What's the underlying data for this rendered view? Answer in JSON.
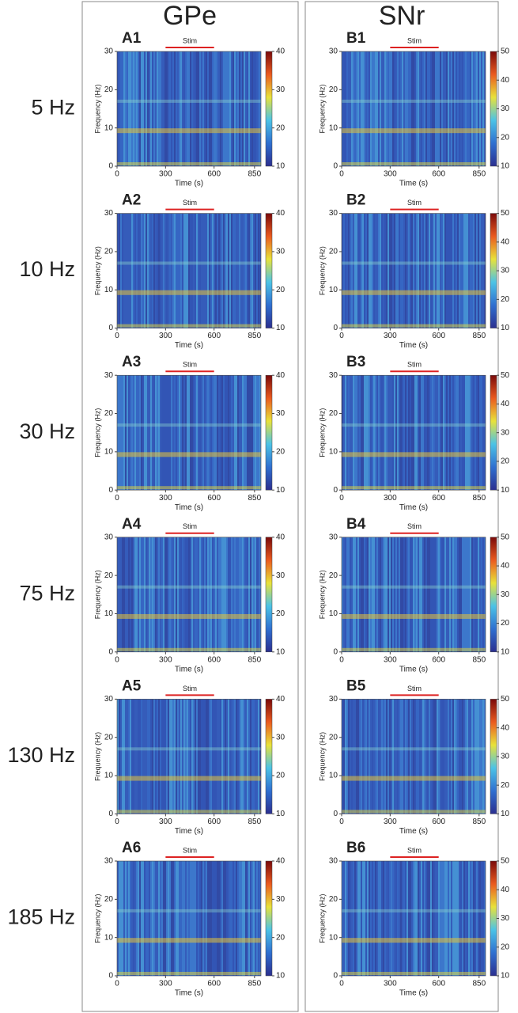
{
  "figure": {
    "columns": [
      "GPe",
      "SNr"
    ],
    "rows": [
      "5 Hz",
      "10 Hz",
      "30 Hz",
      "75 Hz",
      "130 Hz",
      "185 Hz"
    ]
  },
  "chart_data": [
    {
      "type": "heatmap",
      "label": "A1",
      "stim_label": "Stim",
      "stim": [
        300,
        600
      ],
      "xlabel": "Time (s)",
      "ylabel": "Frequency (Hz)",
      "xlim": [
        0,
        890
      ],
      "xticks": [
        0,
        300,
        600,
        850
      ],
      "ylim": [
        0,
        30
      ],
      "yticks": [
        0,
        10,
        20,
        30
      ],
      "clim": [
        10,
        40
      ],
      "cticks": [
        10,
        20,
        30,
        40
      ]
    },
    {
      "type": "heatmap",
      "label": "A2",
      "stim_label": "Stim",
      "stim": [
        300,
        600
      ],
      "xlabel": "Time (s)",
      "ylabel": "Frequency (Hz)",
      "xlim": [
        0,
        890
      ],
      "xticks": [
        0,
        300,
        600,
        850
      ],
      "ylim": [
        0,
        30
      ],
      "yticks": [
        0,
        10,
        20,
        30
      ],
      "clim": [
        10,
        40
      ],
      "cticks": [
        10,
        20,
        30,
        40
      ]
    },
    {
      "type": "heatmap",
      "label": "A3",
      "stim_label": "Stim",
      "stim": [
        300,
        600
      ],
      "xlabel": "Time (s)",
      "ylabel": "Frequency (Hz)",
      "xlim": [
        0,
        890
      ],
      "xticks": [
        0,
        300,
        600,
        850
      ],
      "ylim": [
        0,
        30
      ],
      "yticks": [
        0,
        10,
        20,
        30
      ],
      "clim": [
        10,
        40
      ],
      "cticks": [
        10,
        20,
        30,
        40
      ]
    },
    {
      "type": "heatmap",
      "label": "A4",
      "stim_label": "Stim",
      "stim": [
        300,
        600
      ],
      "xlabel": "Time (s)",
      "ylabel": "Frequency (Hz)",
      "xlim": [
        0,
        890
      ],
      "xticks": [
        0,
        300,
        600,
        850
      ],
      "ylim": [
        0,
        30
      ],
      "yticks": [
        0,
        10,
        20,
        30
      ],
      "clim": [
        10,
        40
      ],
      "cticks": [
        10,
        20,
        30,
        40
      ]
    },
    {
      "type": "heatmap",
      "label": "A5",
      "stim_label": "Stim",
      "stim": [
        300,
        600
      ],
      "xlabel": "Time (s)",
      "ylabel": "Frequency (Hz)",
      "xlim": [
        0,
        890
      ],
      "xticks": [
        0,
        300,
        600,
        850
      ],
      "ylim": [
        0,
        30
      ],
      "yticks": [
        0,
        10,
        20,
        30
      ],
      "clim": [
        10,
        40
      ],
      "cticks": [
        10,
        20,
        30,
        40
      ]
    },
    {
      "type": "heatmap",
      "label": "A6",
      "stim_label": "Stim",
      "stim": [
        300,
        600
      ],
      "xlabel": "Time (s)",
      "ylabel": "Frequency (Hz)",
      "xlim": [
        0,
        890
      ],
      "xticks": [
        0,
        300,
        600,
        850
      ],
      "ylim": [
        0,
        30
      ],
      "yticks": [
        0,
        10,
        20,
        30
      ],
      "clim": [
        10,
        40
      ],
      "cticks": [
        10,
        20,
        30,
        40
      ]
    },
    {
      "type": "heatmap",
      "label": "B1",
      "stim_label": "Stim",
      "stim": [
        300,
        600
      ],
      "xlabel": "Time (s)",
      "ylabel": "Frequency (Hz)",
      "xlim": [
        0,
        890
      ],
      "xticks": [
        0,
        300,
        600,
        850
      ],
      "ylim": [
        0,
        30
      ],
      "yticks": [
        0,
        10,
        20,
        30
      ],
      "clim": [
        10,
        50
      ],
      "cticks": [
        10,
        20,
        30,
        40,
        50
      ]
    },
    {
      "type": "heatmap",
      "label": "B2",
      "stim_label": "Stim",
      "stim": [
        300,
        600
      ],
      "xlabel": "Time (s)",
      "ylabel": "Frequency (Hz)",
      "xlim": [
        0,
        890
      ],
      "xticks": [
        0,
        300,
        600,
        850
      ],
      "ylim": [
        0,
        30
      ],
      "yticks": [
        0,
        10,
        20,
        30
      ],
      "clim": [
        10,
        50
      ],
      "cticks": [
        10,
        20,
        30,
        40,
        50
      ]
    },
    {
      "type": "heatmap",
      "label": "B3",
      "stim_label": "Stim",
      "stim": [
        300,
        600
      ],
      "xlabel": "Time (s)",
      "ylabel": "Frequency (Hz)",
      "xlim": [
        0,
        890
      ],
      "xticks": [
        0,
        300,
        600,
        850
      ],
      "ylim": [
        0,
        30
      ],
      "yticks": [
        0,
        10,
        20,
        30
      ],
      "clim": [
        10,
        50
      ],
      "cticks": [
        10,
        20,
        30,
        40,
        50
      ]
    },
    {
      "type": "heatmap",
      "label": "B4",
      "stim_label": "Stim",
      "stim": [
        300,
        600
      ],
      "xlabel": "Time (s)",
      "ylabel": "Frequency (Hz)",
      "xlim": [
        0,
        890
      ],
      "xticks": [
        0,
        300,
        600,
        850
      ],
      "ylim": [
        0,
        30
      ],
      "yticks": [
        0,
        10,
        20,
        30
      ],
      "clim": [
        10,
        50
      ],
      "cticks": [
        10,
        20,
        30,
        40,
        50
      ]
    },
    {
      "type": "heatmap",
      "label": "B5",
      "stim_label": "Stim",
      "stim": [
        300,
        600
      ],
      "xlabel": "Time (s)",
      "ylabel": "Frequency (Hz)",
      "xlim": [
        0,
        890
      ],
      "xticks": [
        0,
        300,
        600,
        850
      ],
      "ylim": [
        0,
        30
      ],
      "yticks": [
        0,
        10,
        20,
        30
      ],
      "clim": [
        10,
        50
      ],
      "cticks": [
        10,
        20,
        30,
        40,
        50
      ]
    },
    {
      "type": "heatmap",
      "label": "B6",
      "stim_label": "Stim",
      "stim": [
        300,
        600
      ],
      "xlabel": "Time (s)",
      "ylabel": "Frequency (Hz)",
      "xlim": [
        0,
        890
      ],
      "xticks": [
        0,
        300,
        600,
        850
      ],
      "ylim": [
        0,
        30
      ],
      "yticks": [
        0,
        10,
        20,
        30
      ],
      "clim": [
        10,
        50
      ],
      "cticks": [
        10,
        20,
        30,
        40,
        50
      ]
    }
  ]
}
